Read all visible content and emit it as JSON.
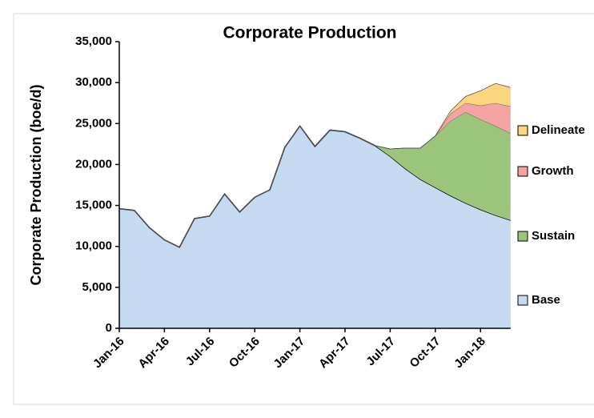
{
  "chart_data": {
    "type": "stacked_area",
    "title": "Corporate Production",
    "y_label": "Corporate Production (boe/d)",
    "categories": [
      "Jan-16",
      null,
      null,
      "Apr-16",
      null,
      null,
      "Jul-16",
      null,
      null,
      "Oct-16",
      null,
      null,
      "Jan-17",
      null,
      null,
      "Apr-17",
      null,
      null,
      "Jul-17",
      null,
      null,
      "Oct-17",
      null,
      null,
      "Jan-18",
      null,
      null
    ],
    "series": [
      {
        "name": "Base",
        "color": "#c5d9f1",
        "values": [
          14600,
          14400,
          12300,
          10800,
          9900,
          13400,
          13700,
          16400,
          14200,
          16000,
          16900,
          22100,
          24700,
          22200,
          24200,
          24000,
          23200,
          22300,
          21000,
          19500,
          18200,
          17200,
          16200,
          15300,
          14500,
          13800,
          13200
        ]
      },
      {
        "name": "Sustain",
        "color": "#9bc57a",
        "values": [
          0,
          0,
          0,
          0,
          0,
          0,
          0,
          0,
          0,
          0,
          0,
          0,
          0,
          0,
          0,
          0,
          0,
          0,
          900,
          2500,
          3800,
          6300,
          9100,
          11100,
          11000,
          10900,
          10600
        ]
      },
      {
        "name": "Growth",
        "color": "#f4a3a3",
        "values": [
          0,
          0,
          0,
          0,
          0,
          0,
          0,
          0,
          0,
          0,
          0,
          0,
          0,
          0,
          0,
          0,
          0,
          0,
          0,
          0,
          0,
          0,
          900,
          1100,
          1700,
          2800,
          3300
        ]
      },
      {
        "name": "Delineate",
        "color": "#fcd581",
        "values": [
          0,
          0,
          0,
          0,
          0,
          0,
          0,
          0,
          0,
          0,
          0,
          0,
          0,
          0,
          0,
          0,
          0,
          0,
          0,
          0,
          0,
          0,
          300,
          800,
          1800,
          2400,
          2300
        ]
      }
    ],
    "ylim": [
      0,
      35000
    ],
    "yticks": [
      0,
      {
        "value": 5000,
        "label": "5,000"
      },
      {
        "value": 10000,
        "label": "10,000"
      },
      {
        "value": 15000,
        "label": "15,000"
      },
      {
        "value": 20000,
        "label": "20,000"
      },
      {
        "value": 25000,
        "label": "25,000"
      },
      {
        "value": 30000,
        "label": "30,000"
      },
      {
        "value": 35000,
        "label": "35,000"
      }
    ],
    "grid": false,
    "legend": "right"
  }
}
